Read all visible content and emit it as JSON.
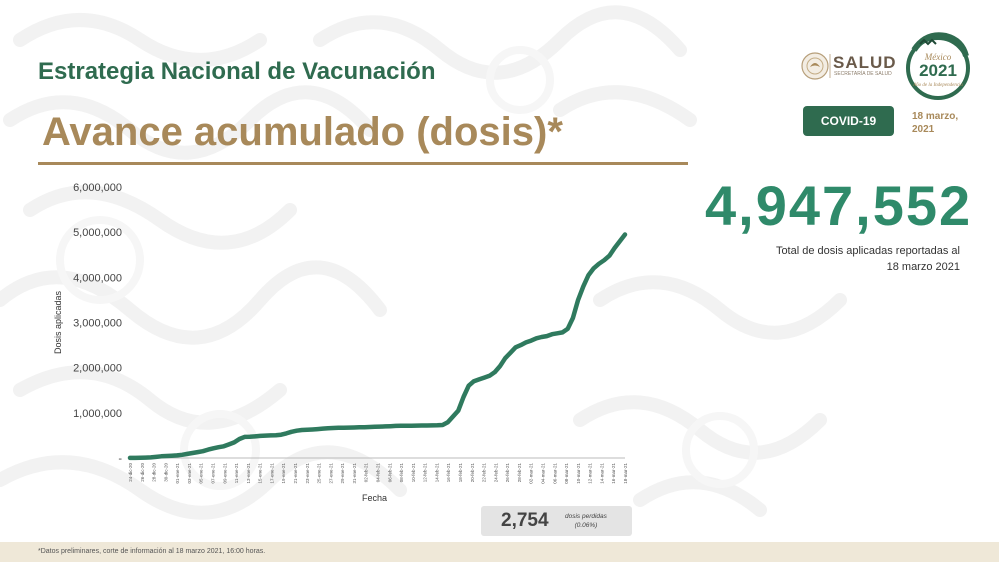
{
  "header": {
    "title": "Estrategia Nacional de Vacunación",
    "subtitle": "Avance acumulado (dosis)*"
  },
  "logos": {
    "salud": "SALUD",
    "salud_sub": "SECRETARÍA DE SALUD",
    "anniversary_top": "México",
    "anniversary_year": "2021",
    "anniversary_sub": "Año de la Independencia"
  },
  "badge": {
    "label": "COVID-19"
  },
  "report_date": {
    "line1": "18 marzo,",
    "line2": "2021"
  },
  "total": {
    "value": "4,947,552",
    "caption_line1": "Total de dosis aplicadas reportadas al",
    "caption_line2": "18 marzo 2021"
  },
  "lost_doses": {
    "value": "2,754",
    "label_line1": "dosis perdidas",
    "label_line2": "(0.06%)"
  },
  "footnote": "*Datos preliminares, corte de información al 18 marzo 2021, 16:00 horas.",
  "colors": {
    "green_dark": "#2f6b4f",
    "line": "#2f7a5e",
    "gold": "#a8895a",
    "number": "#2f8a6a"
  },
  "chart_data": {
    "type": "line",
    "xlabel": "Fecha",
    "ylabel": "Dosis aplicadas",
    "ylim": [
      0,
      6000000
    ],
    "yticks": [
      "-",
      "1,000,000",
      "2,000,000",
      "3,000,000",
      "4,000,000",
      "5,000,000",
      "6,000,000"
    ],
    "grid": false,
    "xtick_labels": [
      "24-dic-20",
      "26-dic-20",
      "28-dic-20",
      "30-dic-20",
      "01-ene-21",
      "03-ene-21",
      "05-ene-21",
      "07-ene-21",
      "09-ene-21",
      "11-ene-21",
      "13-ene-21",
      "15-ene-21",
      "17-ene-21",
      "19-ene-21",
      "21-ene-21",
      "23-ene-21",
      "25-ene-21",
      "27-ene-21",
      "29-ene-21",
      "31-ene-21",
      "02-feb-21",
      "04-feb-21",
      "06-feb-21",
      "08-feb-21",
      "10-feb-21",
      "12-feb-21",
      "14-feb-21",
      "16-feb-21",
      "18-feb-21",
      "20-feb-21",
      "22-feb-21",
      "24-feb-21",
      "26-feb-21",
      "28-feb-21",
      "02-mar-21",
      "04-mar-21",
      "06-mar-21",
      "08-mar-21",
      "10-mar-21",
      "12-mar-21",
      "14-mar-21",
      "16-mar-21",
      "18-mar-21"
    ],
    "series": [
      {
        "values": [
          1300,
          2900,
          3700,
          7900,
          12600,
          25000,
          38000,
          44000,
          50000,
          58000,
          70000,
          90000,
          110000,
          130000,
          150000,
          185000,
          215000,
          240000,
          260000,
          300000,
          345000,
          420000,
          468000,
          470000,
          478000,
          490000,
          495000,
          500000,
          505000,
          515000,
          545000,
          580000,
          605000,
          620000,
          625000,
          630000,
          640000,
          650000,
          660000,
          665000,
          668000,
          671000,
          673000,
          676000,
          680000,
          683000,
          686000,
          690000,
          695000,
          700000,
          705000,
          710000,
          712000,
          714000,
          716000,
          718000,
          719000,
          720000,
          722000,
          725000,
          730000,
          790000,
          920000,
          1050000,
          1350000,
          1600000,
          1700000,
          1740000,
          1780000,
          1820000,
          1900000,
          2030000,
          2210000,
          2330000,
          2450000,
          2500000,
          2560000,
          2600000,
          2650000,
          2680000,
          2700000,
          2740000,
          2760000,
          2780000,
          2860000,
          3100000,
          3500000,
          3800000,
          4050000,
          4200000,
          4300000,
          4380000,
          4480000,
          4650000,
          4800000,
          4947552
        ]
      }
    ]
  }
}
